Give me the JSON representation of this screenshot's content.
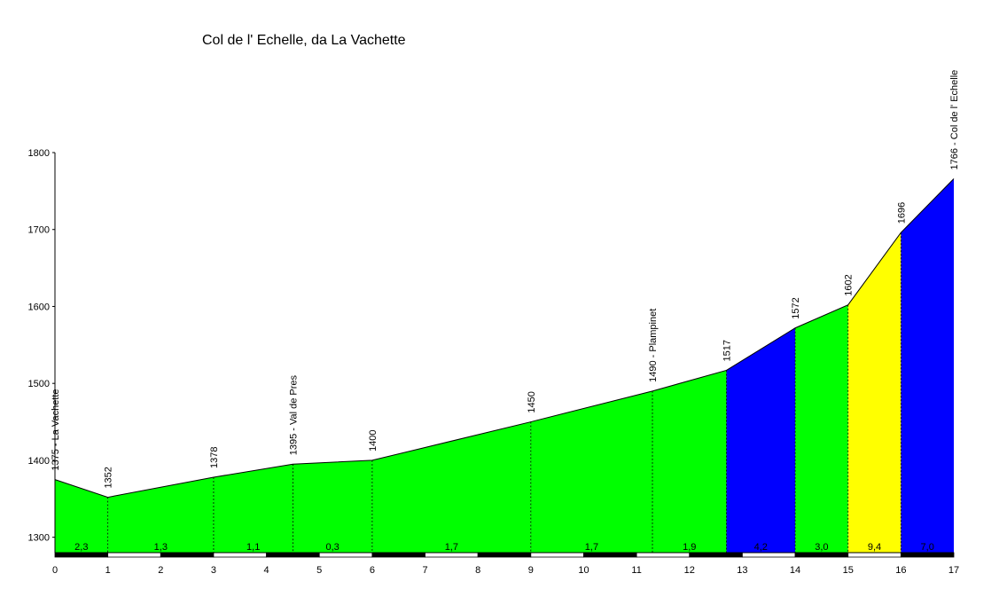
{
  "chart_data": {
    "type": "area",
    "title": "Col de l' Echelle, da La Vachette",
    "xlabel": "",
    "ylabel": "",
    "xlim": [
      0,
      17
    ],
    "ylim": [
      1280,
      1800
    ],
    "x_ticks": [
      0,
      1,
      2,
      3,
      4,
      5,
      6,
      7,
      8,
      9,
      10,
      11,
      12,
      13,
      14,
      15,
      16,
      17
    ],
    "y_ticks": [
      1300,
      1400,
      1500,
      1600,
      1700,
      1800
    ],
    "grid": false,
    "legend": "none",
    "profile": [
      {
        "km": 0,
        "alt": 1375,
        "label": "1375 - La Vachette"
      },
      {
        "km": 1,
        "alt": 1352,
        "label": "1352"
      },
      {
        "km": 3,
        "alt": 1378,
        "label": "1378"
      },
      {
        "km": 4.5,
        "alt": 1395,
        "label": "1395 - Val de Pres"
      },
      {
        "km": 6,
        "alt": 1400,
        "label": "1400"
      },
      {
        "km": 9,
        "alt": 1450,
        "label": "1450"
      },
      {
        "km": 11.3,
        "alt": 1490,
        "label": "1490 - Plampinet"
      },
      {
        "km": 12.7,
        "alt": 1517,
        "label": "1517"
      },
      {
        "km": 14,
        "alt": 1572,
        "label": "1572"
      },
      {
        "km": 15,
        "alt": 1602,
        "label": "1602"
      },
      {
        "km": 16,
        "alt": 1696,
        "label": "1696"
      },
      {
        "km": 17,
        "alt": 1766,
        "label": "1766 - Col de l' Echelle"
      }
    ],
    "segments": [
      {
        "from": 0,
        "to": 1,
        "gradient": "2,3",
        "color": "#00ff00"
      },
      {
        "from": 1,
        "to": 3,
        "gradient": "1,3",
        "color": "#00ff00"
      },
      {
        "from": 3,
        "to": 4.5,
        "gradient": "1,1",
        "color": "#00ff00"
      },
      {
        "from": 4.5,
        "to": 6,
        "gradient": "0,3",
        "color": "#00ff00"
      },
      {
        "from": 6,
        "to": 9,
        "gradient": "1,7",
        "color": "#00ff00"
      },
      {
        "from": 9,
        "to": 11.3,
        "gradient": "1,7",
        "color": "#00ff00"
      },
      {
        "from": 11.3,
        "to": 12.7,
        "gradient": "1,9",
        "color": "#00ff00"
      },
      {
        "from": 12.7,
        "to": 14,
        "gradient": "4,2",
        "color": "#0000ff"
      },
      {
        "from": 14,
        "to": 15,
        "gradient": "3,0",
        "color": "#00ff00"
      },
      {
        "from": 15,
        "to": 16,
        "gradient": "9,4",
        "color": "#ffff00"
      },
      {
        "from": 16,
        "to": 17,
        "gradient": "7,0",
        "color": "#0000ff"
      }
    ]
  }
}
